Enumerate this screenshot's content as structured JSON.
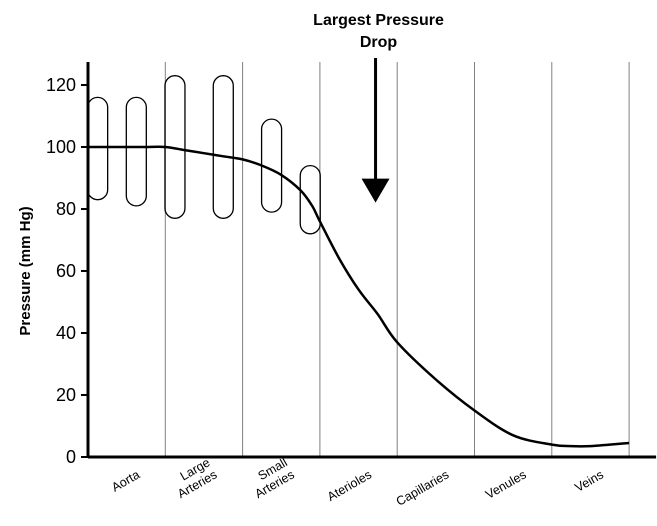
{
  "chart_data": {
    "type": "line",
    "title": "",
    "ylabel": "Pressure (mm Hg)",
    "xlabel": "",
    "ylim": [
      0,
      125
    ],
    "yticks": [
      0,
      20,
      40,
      60,
      80,
      100,
      120
    ],
    "grid": "vertical separators between vessel segments",
    "categories": [
      {
        "lines": [
          "Aorta"
        ]
      },
      {
        "lines": [
          "Large",
          "Arteries"
        ]
      },
      {
        "lines": [
          "Small",
          "Arteries"
        ]
      },
      {
        "lines": [
          "Aterioles"
        ]
      },
      {
        "lines": [
          "Capillaries"
        ]
      },
      {
        "lines": [
          "Venules"
        ]
      },
      {
        "lines": [
          "Veins"
        ]
      }
    ],
    "series": [
      {
        "x": [
          0,
          0.25,
          0.5,
          0.75,
          1.0,
          1.25,
          1.5,
          1.75,
          2.0,
          2.25,
          2.5,
          2.75,
          2.9,
          3.0,
          3.25,
          3.5,
          3.75,
          4.0,
          4.5,
          5.0,
          5.5,
          6.0,
          6.25,
          6.5,
          6.75,
          7.0
        ],
        "values": [
          100,
          100,
          100,
          100,
          100,
          99,
          98,
          97,
          96,
          94,
          91,
          86,
          81,
          76,
          64,
          54,
          46,
          37,
          25,
          15,
          7,
          4,
          3.5,
          3.5,
          4,
          4.5
        ]
      }
    ],
    "pulse_oscillations": [
      {
        "center": 0.125,
        "max": 116,
        "min": 83
      },
      {
        "center": 0.625,
        "max": 116,
        "min": 81
      },
      {
        "center": 1.125,
        "max": 123,
        "min": 77
      },
      {
        "center": 1.75,
        "max": 123,
        "min": 77
      },
      {
        "center": 2.375,
        "max": 109,
        "min": 79
      },
      {
        "center": 2.875,
        "max": 94,
        "min": 72
      }
    ],
    "annotation": {
      "lines": [
        "Largest Pressure",
        "Drop"
      ],
      "arrow_x": 3.5,
      "arrow_tip": 84
    }
  }
}
